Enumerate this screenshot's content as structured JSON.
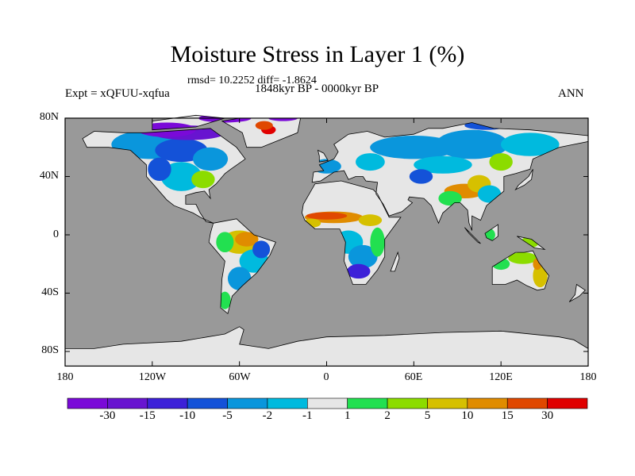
{
  "chart_data": {
    "type": "heatmap",
    "subtype": "filled-contour world map",
    "title": "Moisture Stress in Layer 1 (%)",
    "stats_text": "rmsd= 10.2252 diff= -1.8624",
    "period": "1848kyr BP - 0000kyr BP",
    "experiment": "Expt = xQFUU-xqfua",
    "season": "ANN",
    "lat_ticks": [
      "80N",
      "40N",
      "0",
      "40S",
      "80S"
    ],
    "lat_values": [
      80,
      40,
      0,
      -40,
      -80
    ],
    "lon_ticks": [
      "180",
      "120W",
      "60W",
      "0",
      "60E",
      "120E",
      "180"
    ],
    "lon_values": [
      -180,
      -120,
      -60,
      0,
      60,
      120,
      180
    ],
    "xlim": [
      -180,
      180
    ],
    "ylim": [
      -90,
      80
    ],
    "ocean_color": "#999999",
    "colorbar": {
      "labels": [
        "-30",
        "-15",
        "-10",
        "-5",
        "-2",
        "-1",
        "1",
        "2",
        "5",
        "10",
        "15",
        "30"
      ],
      "colors": [
        "#7a0ad8",
        "#6814d0",
        "#3c20d8",
        "#1452d8",
        "#0a96dc",
        "#00bade",
        "#e6e6e6",
        "#22e050",
        "#8cdc00",
        "#d6c000",
        "#e08c00",
        "#e04800",
        "#e00000"
      ]
    }
  }
}
